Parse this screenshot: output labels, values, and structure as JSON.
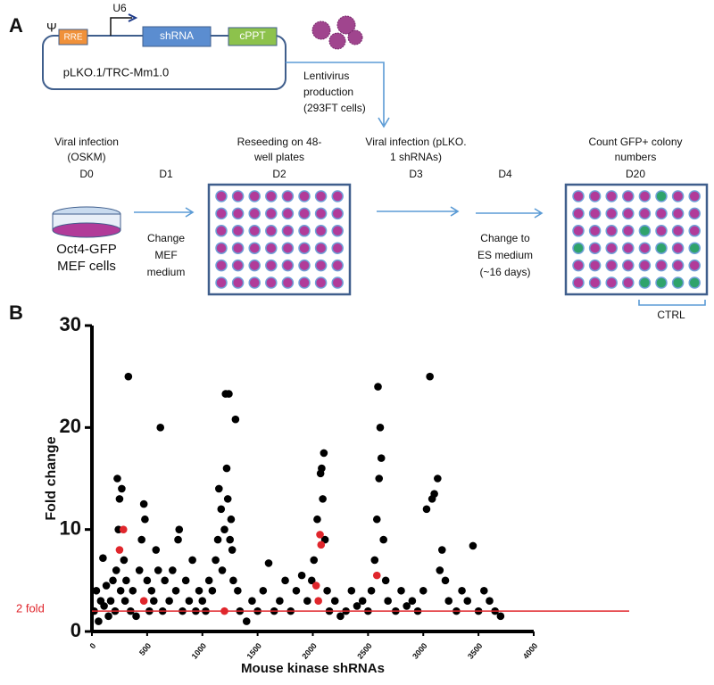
{
  "panel_a": {
    "label": "A",
    "psi": "Ψ",
    "rre": "RRE",
    "promoter": "U6",
    "shrna": "shRNA",
    "cppt": "cPPT",
    "vector": "pLKO.1/TRC-Mm1.0",
    "lentivirus": [
      "Lentivirus",
      "production",
      "(293FT cells)"
    ],
    "step_infection": [
      "Viral infection",
      "(OSKM)"
    ],
    "d0": "D0",
    "d1": "D1",
    "step_reseed": [
      "Reseeding on 48-",
      "well plates"
    ],
    "d2": "D2",
    "step_shrna": [
      "Viral infection (pLKO.",
      "1 shRNAs)"
    ],
    "d3": "D3",
    "d4": "D4",
    "step_count": [
      "Count GFP+ colony",
      "numbers"
    ],
    "d20": "D20",
    "cells": [
      "Oct4-GFP",
      "MEF cells"
    ],
    "change_mef": [
      "Change",
      "MEF",
      "medium"
    ],
    "change_es": [
      "Change to",
      "ES medium",
      "(~16 days)"
    ],
    "ctrl": "CTRL"
  },
  "chart_data": {
    "type": "scatter",
    "panel_label": "B",
    "x_label": "Mouse kinase shRNAs",
    "y_label": "Fold change",
    "xlim": [
      0,
      4000
    ],
    "xticks": [
      0,
      500,
      1000,
      1500,
      2000,
      2500,
      3000,
      3500,
      4000
    ],
    "ylim": [
      0,
      30
    ],
    "yticks": [
      0,
      10,
      20,
      30
    ],
    "threshold": {
      "value": 2,
      "label": "2 fold",
      "color": "#e0262c"
    },
    "series": [
      {
        "color": "#000000",
        "x": [
          20,
          40,
          60,
          80,
          100,
          110,
          130,
          150,
          170,
          190,
          210,
          220,
          230,
          240,
          250,
          260,
          270,
          290,
          300,
          310,
          330,
          350,
          370,
          400,
          430,
          450,
          470,
          480,
          500,
          520,
          540,
          560,
          580,
          600,
          620,
          640,
          660,
          700,
          730,
          760,
          780,
          790,
          820,
          850,
          880,
          910,
          940,
          970,
          1000,
          1030,
          1060,
          1090,
          1120,
          1140,
          1150,
          1170,
          1180,
          1200,
          1210,
          1220,
          1230,
          1240,
          1250,
          1260,
          1270,
          1280,
          1300,
          1320,
          1340,
          1400,
          1450,
          1500,
          1550,
          1600,
          1650,
          1700,
          1750,
          1800,
          1850,
          1900,
          1950,
          1990,
          2010,
          2040,
          2070,
          2080,
          2100,
          2090,
          2110,
          2130,
          2150,
          2200,
          2250,
          2300,
          2350,
          2400,
          2450,
          2500,
          2530,
          2560,
          2580,
          2590,
          2600,
          2610,
          2620,
          2640,
          2660,
          2680,
          2750,
          2800,
          2850,
          2900,
          2950,
          3000,
          3030,
          3060,
          3080,
          3100,
          3130,
          3150,
          3170,
          3200,
          3230,
          3300,
          3350,
          3400,
          3450,
          3500,
          3550,
          3600,
          3650,
          3700
        ],
        "values": [
          2,
          4,
          1,
          3,
          7.2,
          2.5,
          4.5,
          1.5,
          3,
          5,
          2,
          6,
          15,
          10,
          13,
          4,
          14,
          7,
          3,
          5,
          25,
          2,
          4,
          1.5,
          6,
          9,
          12.5,
          11,
          5,
          2,
          4,
          3,
          8,
          6,
          20,
          2,
          5,
          3,
          6,
          4,
          9,
          10,
          2,
          5,
          3,
          7,
          2,
          4,
          3,
          2,
          5,
          4,
          7,
          9,
          14,
          12,
          6,
          10,
          23.3,
          16,
          13,
          23.3,
          9,
          11,
          8,
          5,
          20.8,
          4,
          2,
          1,
          3,
          2,
          4,
          6.7,
          2,
          3,
          5,
          2,
          4,
          5.5,
          3,
          5,
          7,
          11,
          15.5,
          16,
          17.5,
          13,
          9,
          4,
          2,
          3,
          1.5,
          2,
          4,
          2.5,
          3,
          2,
          4,
          7,
          11,
          24,
          15,
          20,
          17,
          9,
          5,
          3,
          2,
          4,
          2.5,
          3,
          2,
          4,
          12,
          25,
          13,
          13.5,
          15,
          6,
          8,
          5,
          3,
          2,
          4,
          3,
          8.4,
          2,
          4,
          3,
          2,
          1.5
        ]
      },
      {
        "color": "#e0262c",
        "x": [
          250,
          285,
          470,
          1200,
          2030,
          2050,
          2065,
          2075,
          2580
        ],
        "values": [
          8,
          10,
          3,
          2,
          4.5,
          3,
          9.5,
          8.5,
          5.5
        ]
      }
    ]
  }
}
